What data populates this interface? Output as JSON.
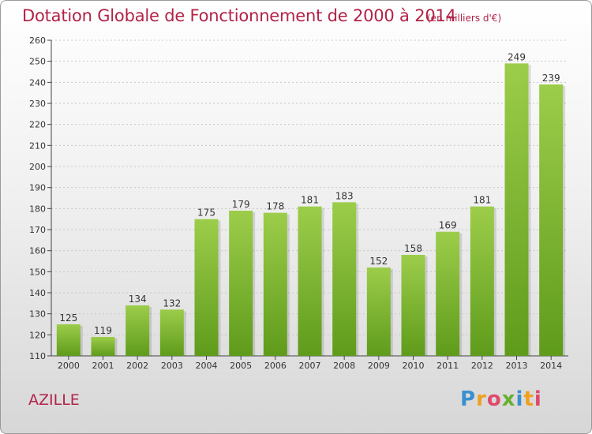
{
  "title": "Dotation Globale de Fonctionnement de 2000 à 2014",
  "subtitle": "(en milliers d'€)",
  "commune": "AZILLE",
  "logo": {
    "text": "Proxiti"
  },
  "colors": {
    "title": "#b22247",
    "bar_light": "#9ccd4a",
    "bar_dark": "#5f9b1b"
  },
  "chart_data": {
    "type": "bar",
    "title": "Dotation Globale de Fonctionnement de 2000 à 2014",
    "subtitle": "(en milliers d'€)",
    "categories": [
      "2000",
      "2001",
      "2002",
      "2003",
      "2004",
      "2005",
      "2006",
      "2007",
      "2008",
      "2009",
      "2010",
      "2011",
      "2012",
      "2013",
      "2014"
    ],
    "values": [
      125,
      119,
      134,
      132,
      175,
      179,
      178,
      181,
      183,
      152,
      158,
      169,
      181,
      249,
      239
    ],
    "ylim": [
      110,
      260
    ],
    "yticks": [
      110,
      120,
      130,
      140,
      150,
      160,
      170,
      180,
      190,
      200,
      210,
      220,
      230,
      240,
      250,
      260
    ],
    "grid": true,
    "xlabel": "",
    "ylabel": ""
  }
}
